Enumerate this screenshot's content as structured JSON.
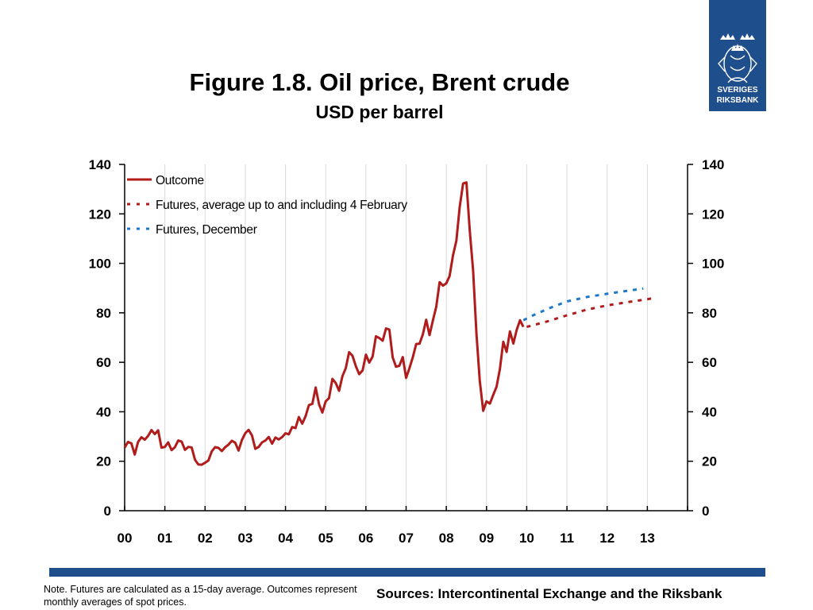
{
  "header": {
    "title": "Figure 1.8. Oil price, Brent crude",
    "subtitle": "USD per barrel"
  },
  "logo": {
    "line1": "SVERIGES",
    "line2": "RIKSBANK",
    "color": "#1f4e8c"
  },
  "footer": {
    "note": "Note. Futures are calculated as a 15-day average. Outcomes represent monthly averages of spot prices.",
    "sources": "Sources: Intercontinental Exchange and the Riksbank"
  },
  "chart_data": {
    "type": "line",
    "title": "Figure 1.8. Oil price, Brent crude",
    "subtitle": "USD per barrel",
    "xlabel": "",
    "ylabel": "",
    "ylim": [
      0,
      140
    ],
    "yticks": [
      0,
      20,
      40,
      60,
      80,
      100,
      120,
      140
    ],
    "dual_y_axis": true,
    "xlim": [
      2000,
      2014
    ],
    "xtick_labels": [
      "00",
      "01",
      "02",
      "03",
      "04",
      "05",
      "06",
      "07",
      "08",
      "09",
      "10",
      "11",
      "12",
      "13"
    ],
    "grid": "vertical",
    "legend_position": "top-left",
    "series": [
      {
        "name": "Outcome",
        "style": "solid",
        "color": "#b01c1c",
        "x": [
          2000.0,
          2000.083,
          2000.167,
          2000.25,
          2000.333,
          2000.417,
          2000.5,
          2000.583,
          2000.667,
          2000.75,
          2000.833,
          2000.917,
          2001.0,
          2001.083,
          2001.167,
          2001.25,
          2001.333,
          2001.417,
          2001.5,
          2001.583,
          2001.667,
          2001.75,
          2001.833,
          2001.917,
          2002.0,
          2002.083,
          2002.167,
          2002.25,
          2002.333,
          2002.417,
          2002.5,
          2002.583,
          2002.667,
          2002.75,
          2002.833,
          2002.917,
          2003.0,
          2003.083,
          2003.167,
          2003.25,
          2003.333,
          2003.417,
          2003.5,
          2003.583,
          2003.667,
          2003.75,
          2003.833,
          2003.917,
          2004.0,
          2004.083,
          2004.167,
          2004.25,
          2004.333,
          2004.417,
          2004.5,
          2004.583,
          2004.667,
          2004.75,
          2004.833,
          2004.917,
          2005.0,
          2005.083,
          2005.167,
          2005.25,
          2005.333,
          2005.417,
          2005.5,
          2005.583,
          2005.667,
          2005.75,
          2005.833,
          2005.917,
          2006.0,
          2006.083,
          2006.167,
          2006.25,
          2006.333,
          2006.417,
          2006.5,
          2006.583,
          2006.667,
          2006.75,
          2006.833,
          2006.917,
          2007.0,
          2007.083,
          2007.167,
          2007.25,
          2007.333,
          2007.417,
          2007.5,
          2007.583,
          2007.667,
          2007.75,
          2007.833,
          2007.917,
          2008.0,
          2008.083,
          2008.167,
          2008.25,
          2008.333,
          2008.417,
          2008.5,
          2008.583,
          2008.667,
          2008.75,
          2008.833,
          2008.917,
          2009.0,
          2009.083,
          2009.167,
          2009.25,
          2009.333,
          2009.417,
          2009.5,
          2009.583,
          2009.667,
          2009.75,
          2009.833,
          2009.917
        ],
        "values": [
          25.5,
          27.8,
          27.2,
          22.7,
          27.8,
          29.7,
          28.7,
          30.2,
          32.6,
          31.0,
          32.5,
          25.5,
          25.8,
          27.6,
          24.5,
          25.7,
          28.4,
          27.9,
          24.6,
          25.8,
          25.6,
          20.6,
          18.7,
          18.6,
          19.4,
          20.3,
          24.0,
          25.7,
          25.4,
          24.1,
          25.7,
          26.7,
          28.3,
          27.5,
          24.3,
          28.6,
          31.3,
          32.7,
          30.4,
          25.0,
          25.8,
          27.6,
          28.4,
          29.8,
          27.1,
          29.6,
          28.8,
          29.8,
          31.3,
          30.9,
          33.8,
          33.4,
          37.9,
          35.2,
          38.2,
          42.7,
          43.2,
          49.8,
          43.1,
          39.7,
          44.2,
          45.5,
          53.3,
          51.6,
          48.5,
          54.4,
          57.6,
          64.1,
          62.6,
          58.4,
          55.2,
          56.7,
          63.1,
          59.9,
          62.3,
          70.5,
          69.8,
          68.7,
          73.7,
          73.2,
          62.0,
          58.2,
          58.6,
          62.1,
          53.7,
          57.6,
          62.1,
          67.4,
          67.5,
          71.3,
          77.2,
          71.0,
          77.0,
          82.5,
          92.4,
          91.0,
          91.9,
          94.9,
          103.3,
          109.1,
          122.8,
          132.3,
          132.7,
          113.2,
          97.1,
          71.6,
          52.5,
          40.4,
          44.2,
          43.3,
          46.8,
          50.1,
          57.2,
          68.3,
          64.2,
          72.5,
          67.6,
          73.1,
          77.0,
          74.3
        ]
      },
      {
        "name": "Futures, average up to and including 4 February",
        "style": "dotted",
        "color": "#b01c1c",
        "x": [
          2010.0,
          2010.5,
          2011.0,
          2011.5,
          2012.0,
          2012.5,
          2013.0,
          2013.1
        ],
        "values": [
          74.3,
          76.5,
          79.0,
          81.3,
          83.0,
          84.3,
          85.5,
          85.8
        ]
      },
      {
        "name": "Futures, December",
        "style": "dotted",
        "color": "#1f78c8",
        "x": [
          2009.917,
          2010.2,
          2010.6,
          2011.0,
          2011.5,
          2012.0,
          2012.5,
          2012.9
        ],
        "values": [
          77.0,
          79.3,
          82.1,
          84.6,
          86.4,
          87.7,
          88.9,
          89.8
        ]
      }
    ]
  }
}
